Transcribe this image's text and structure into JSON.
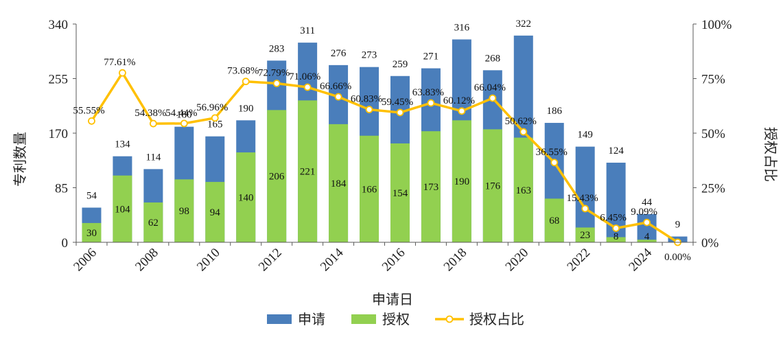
{
  "chart_data": {
    "type": "bar",
    "title": "",
    "xlabel": "申请日",
    "ylabel": "专利数量",
    "y2label": "授权占比",
    "ylim": [
      0,
      340
    ],
    "y2lim": [
      0,
      100
    ],
    "yticks": [
      "0",
      "85",
      "170",
      "255",
      "340"
    ],
    "y2ticks": [
      "0%",
      "25%",
      "50%",
      "75%",
      "100%"
    ],
    "xtick_labels": [
      "2006",
      "2008",
      "2010",
      "2012",
      "2014",
      "2016",
      "2018",
      "2020",
      "2022",
      "2024"
    ],
    "categories": [
      "2006",
      "2007",
      "2008",
      "2009",
      "2010",
      "2011",
      "2012",
      "2013",
      "2014",
      "2015",
      "2016",
      "2017",
      "2018",
      "2019",
      "2020",
      "2021",
      "2022",
      "2023",
      "2024",
      "2025"
    ],
    "series": [
      {
        "name": "申请",
        "type": "bar",
        "color": "#4a7ebb",
        "values": [
          54,
          134,
          114,
          180,
          165,
          190,
          283,
          311,
          276,
          273,
          259,
          271,
          316,
          268,
          322,
          186,
          149,
          124,
          44,
          9
        ]
      },
      {
        "name": "授权",
        "type": "bar",
        "color": "#92d050",
        "values": [
          30,
          104,
          62,
          98,
          94,
          140,
          206,
          221,
          184,
          166,
          154,
          173,
          190,
          176,
          163,
          68,
          23,
          8,
          4,
          null
        ]
      },
      {
        "name": "授权占比",
        "type": "line",
        "axis": "right",
        "color": "#ffc000",
        "values": [
          55.55,
          77.61,
          54.38,
          54.44,
          56.96,
          73.68,
          72.79,
          71.06,
          66.66,
          60.83,
          59.45,
          63.83,
          60.12,
          66.04,
          50.62,
          36.55,
          15.43,
          6.45,
          9.09,
          0.0
        ],
        "labels": [
          "55.55%",
          "77.61%",
          "54.38%",
          "54.44%",
          "56.96%",
          "73.68%",
          "72.79%",
          "71.06%",
          "66.66%",
          "60.83%",
          "59.45%",
          "63.83%",
          "60.12%",
          "66.04%",
          "50.62%",
          "36.55%",
          "15.43%",
          "6.45%",
          "9.09%",
          "0.00%"
        ]
      }
    ],
    "legend_position": "bottom",
    "grid": false
  }
}
